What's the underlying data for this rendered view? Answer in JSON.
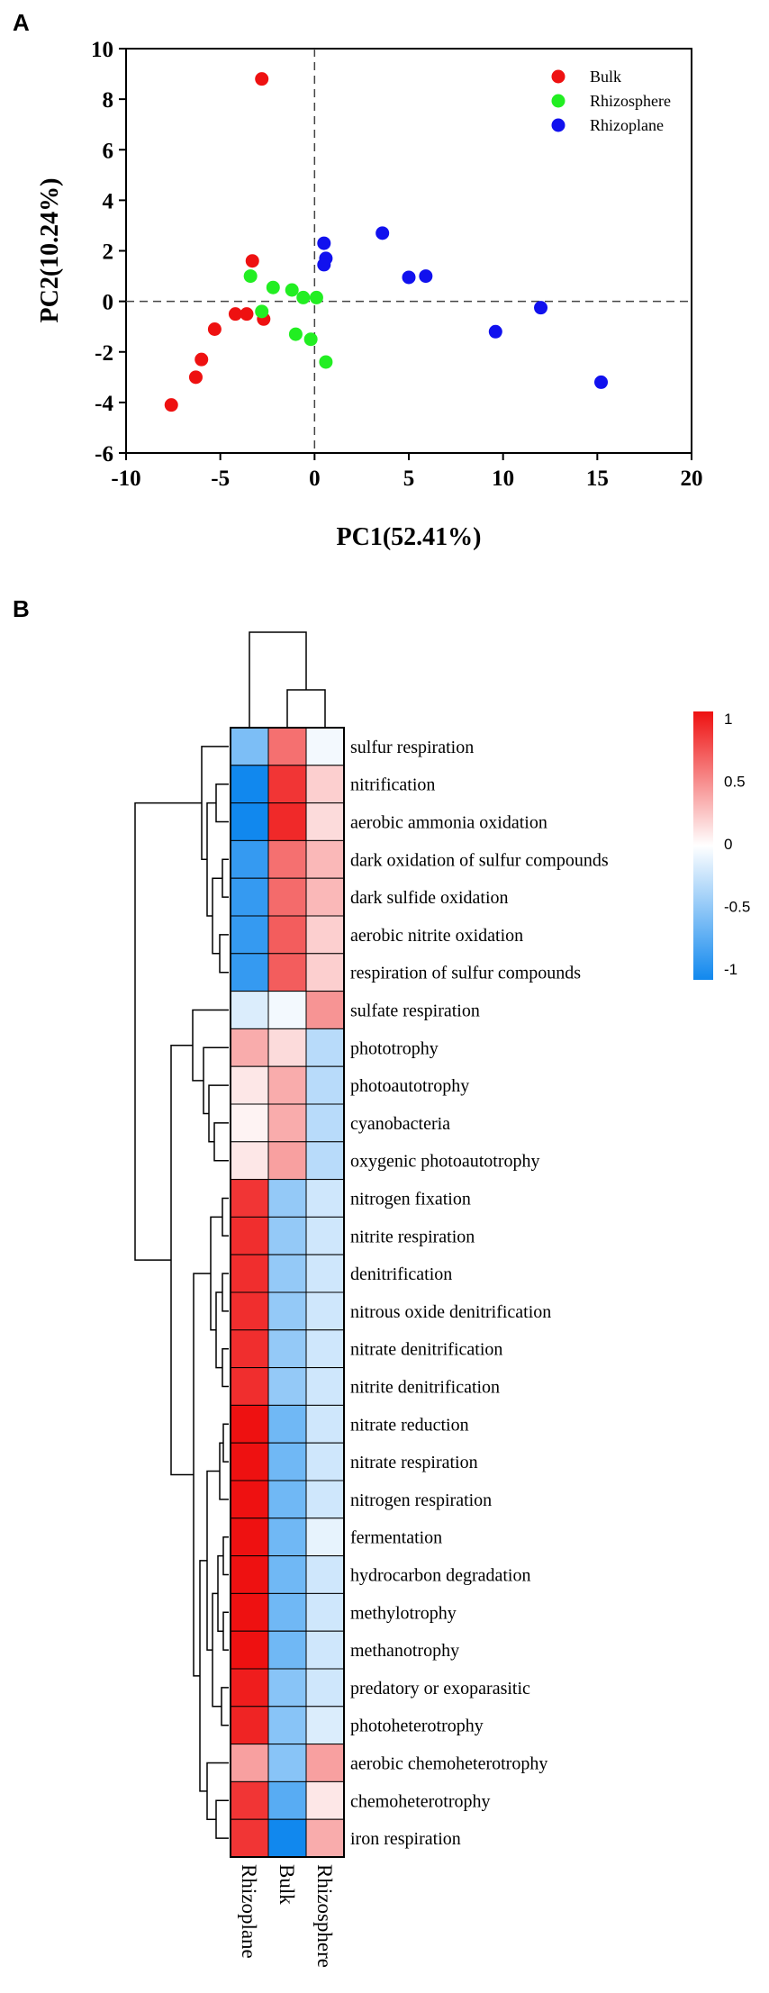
{
  "figure": {
    "panel_a_label": "A",
    "panel_b_label": "B"
  },
  "chart_data": [
    {
      "type": "scatter",
      "title": "",
      "xlabel": "PC1(52.41%)",
      "ylabel": "PC2(10.24%)",
      "xlim": [
        -10,
        20
      ],
      "ylim": [
        -6,
        10
      ],
      "xticks": [
        -10,
        -5,
        0,
        5,
        10,
        15,
        20
      ],
      "yticks": [
        -6,
        -4,
        -2,
        0,
        2,
        4,
        6,
        8,
        10
      ],
      "x_tick_labels": [
        "-10",
        "-5",
        "0",
        "5",
        "10",
        "15",
        "20"
      ],
      "y_tick_labels": [
        "-6",
        "-4",
        "-2",
        "0",
        "2",
        "4",
        "6",
        "8",
        "10"
      ],
      "reference_lines": {
        "x": 0,
        "y": 0,
        "style": "dashed"
      },
      "legend_position": "top-right",
      "grid": false,
      "series": [
        {
          "name": "Bulk",
          "color": "#ee1111",
          "points": [
            [
              -2.8,
              8.8
            ],
            [
              -3.3,
              1.6
            ],
            [
              -2.7,
              -0.7
            ],
            [
              -4.2,
              -0.5
            ],
            [
              -3.6,
              -0.5
            ],
            [
              -5.3,
              -1.1
            ],
            [
              -6.0,
              -2.3
            ],
            [
              -6.3,
              -3.0
            ],
            [
              -7.6,
              -4.1
            ]
          ]
        },
        {
          "name": "Rhizosphere",
          "color": "#22ee22",
          "points": [
            [
              -3.4,
              1.0
            ],
            [
              -2.2,
              0.55
            ],
            [
              -1.2,
              0.45
            ],
            [
              -0.6,
              0.15
            ],
            [
              0.1,
              0.15
            ],
            [
              -2.8,
              -0.4
            ],
            [
              -1.0,
              -1.3
            ],
            [
              -0.2,
              -1.5
            ],
            [
              0.6,
              -2.4
            ]
          ]
        },
        {
          "name": "Rhizoplane",
          "color": "#1111ee",
          "points": [
            [
              0.5,
              2.3
            ],
            [
              0.6,
              1.7
            ],
            [
              0.5,
              1.45
            ],
            [
              3.6,
              2.7
            ],
            [
              5.0,
              0.95
            ],
            [
              5.9,
              1.0
            ],
            [
              12.0,
              -0.25
            ],
            [
              9.6,
              -1.2
            ],
            [
              15.2,
              -3.2
            ]
          ]
        }
      ]
    },
    {
      "type": "heatmap",
      "title": "",
      "columns": [
        "Rhizoplane",
        "Bulk",
        "Rhizosphere"
      ],
      "rows": [
        "sulfur respiration",
        "nitrification",
        "aerobic ammonia oxidation",
        "dark oxidation of sulfur compounds",
        "dark sulfide oxidation",
        "aerobic nitrite oxidation",
        "respiration of sulfur compounds",
        "sulfate respiration",
        "phototrophy",
        "photoautotrophy",
        "cyanobacteria",
        "oxygenic photoautotrophy",
        "nitrogen fixation",
        "nitrite respiration",
        "denitrification",
        "nitrous oxide denitrification",
        "nitrate denitrification",
        "nitrite denitrification",
        "nitrate reduction",
        "nitrate respiration",
        "nitrogen respiration",
        "fermentation",
        "hydrocarbon degradation",
        "methylotrophy",
        "methanotrophy",
        "predatory or exoparasitic",
        "photoheterotrophy",
        "aerobic chemoheterotrophy",
        "chemoheterotrophy",
        "iron respiration"
      ],
      "values": [
        [
          -0.55,
          0.6,
          -0.05
        ],
        [
          -1.0,
          0.85,
          0.2
        ],
        [
          -1.05,
          0.9,
          0.15
        ],
        [
          -0.85,
          0.6,
          0.3
        ],
        [
          -0.85,
          0.62,
          0.3
        ],
        [
          -0.85,
          0.68,
          0.2
        ],
        [
          -0.85,
          0.68,
          0.2
        ],
        [
          -0.15,
          -0.05,
          0.45
        ],
        [
          0.35,
          0.15,
          -0.3
        ],
        [
          0.1,
          0.35,
          -0.3
        ],
        [
          0.05,
          0.35,
          -0.3
        ],
        [
          0.1,
          0.4,
          -0.3
        ],
        [
          0.85,
          -0.45,
          -0.2
        ],
        [
          0.88,
          -0.45,
          -0.2
        ],
        [
          0.88,
          -0.45,
          -0.2
        ],
        [
          0.88,
          -0.45,
          -0.2
        ],
        [
          0.88,
          -0.45,
          -0.2
        ],
        [
          0.88,
          -0.45,
          -0.2
        ],
        [
          1.0,
          -0.6,
          -0.2
        ],
        [
          1.0,
          -0.6,
          -0.2
        ],
        [
          1.0,
          -0.6,
          -0.2
        ],
        [
          1.0,
          -0.6,
          -0.1
        ],
        [
          1.0,
          -0.6,
          -0.2
        ],
        [
          1.0,
          -0.6,
          -0.2
        ],
        [
          1.0,
          -0.6,
          -0.2
        ],
        [
          0.95,
          -0.5,
          -0.2
        ],
        [
          0.92,
          -0.5,
          -0.15
        ],
        [
          0.4,
          -0.5,
          0.4
        ],
        [
          0.85,
          -0.7,
          0.1
        ],
        [
          0.85,
          -1.0,
          0.35
        ]
      ],
      "colorbar": {
        "min": -1,
        "max": 1,
        "tick_values": [
          1,
          0.5,
          0,
          -0.5,
          -1
        ],
        "tick_labels": [
          "1",
          "0.5",
          "0",
          "-0.5",
          "-1"
        ],
        "low_color": "#1188ee",
        "mid_color": "#ffffff",
        "high_color": "#ee1111"
      }
    }
  ]
}
